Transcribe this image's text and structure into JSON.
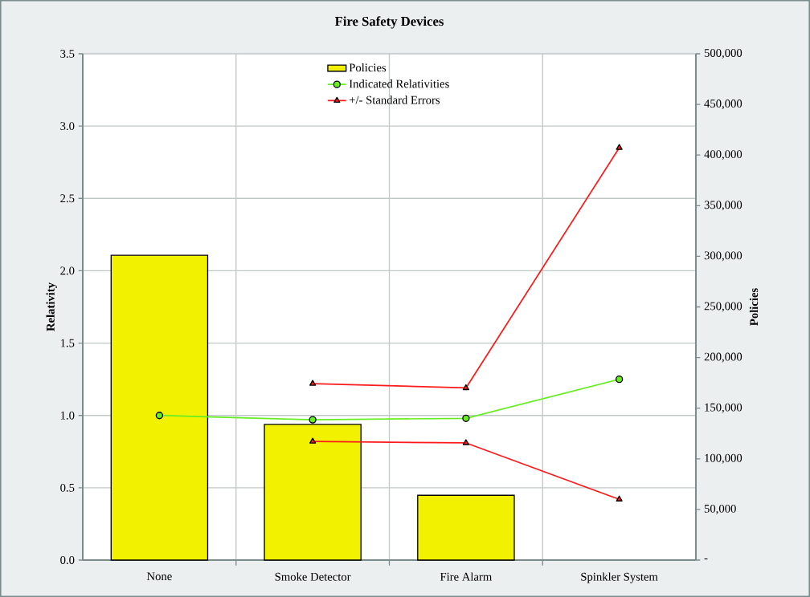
{
  "chart_data": {
    "type": "bar",
    "title": "Fire Safety Devices",
    "ylabel": "Relativity",
    "y2label": "Policies",
    "categories": [
      "None",
      "Smoke Detector",
      "Fire Alarm",
      "Spinkler System"
    ],
    "series": [
      {
        "name": "Policies",
        "axis": "y2",
        "color": "#f2f200",
        "values": [
          301000,
          134000,
          64000,
          null
        ]
      },
      {
        "name": "Indicated Relativities",
        "type": "line",
        "marker": "circle",
        "color": "#66ee22",
        "values": [
          1.0,
          0.97,
          0.98,
          1.25
        ]
      },
      {
        "name": "+/- Standard Errors",
        "type": "line",
        "marker": "triangle",
        "color": "#ff1a1a",
        "values": [
          null,
          1.22,
          1.19,
          2.85
        ]
      },
      {
        "type": "line",
        "marker": "triangle",
        "color": "#ff1a1a",
        "values": [
          null,
          0.82,
          0.81,
          0.42
        ]
      }
    ],
    "ylim": [
      0,
      3.5
    ],
    "yticks": [
      {
        "value": 0,
        "label": "0.0"
      },
      0.5,
      {
        "value": 1,
        "label": "1.0"
      },
      1.5,
      {
        "value": 2,
        "label": "2.0"
      },
      2.5,
      {
        "value": 3,
        "label": "3.0"
      },
      3.5
    ],
    "y2lim": [
      0,
      500000
    ],
    "y2ticks": [
      {
        "value": 0,
        "label": "-"
      },
      {
        "value": 50000,
        "label": "50,000"
      },
      {
        "value": 100000,
        "label": "100,000"
      },
      {
        "value": 150000,
        "label": "150,000"
      },
      {
        "value": 200000,
        "label": "200,000"
      },
      {
        "value": 250000,
        "label": "250,000"
      },
      {
        "value": 300000,
        "label": "300,000"
      },
      {
        "value": 350000,
        "label": "350,000"
      },
      {
        "value": 400000,
        "label": "400,000"
      },
      {
        "value": 450000,
        "label": "450,000"
      },
      {
        "value": 500000,
        "label": "500,000"
      }
    ],
    "grid": true,
    "legend": "top"
  }
}
